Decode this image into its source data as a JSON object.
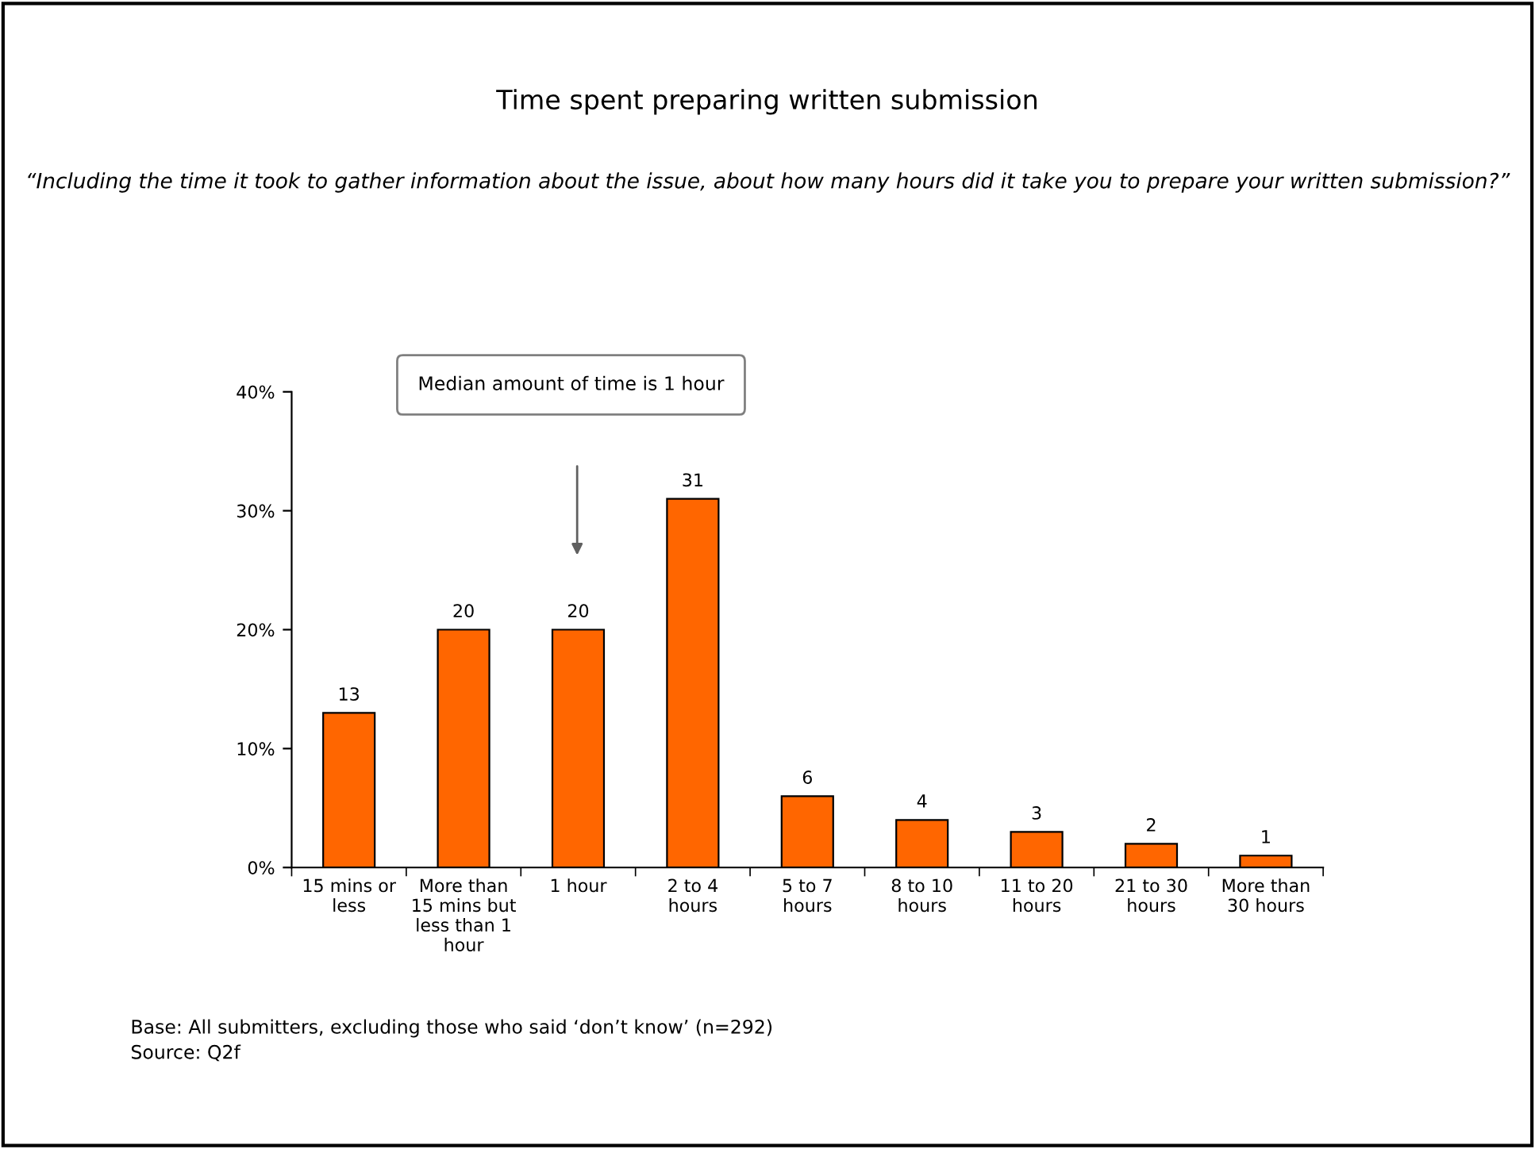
{
  "chart_data": {
    "type": "bar",
    "title": "Time spent preparing written submission",
    "subtitle": "“Including the time it took to gather information about the issue, about how many hours did it take you to prepare your written submission?”",
    "categories": [
      "15 mins or\nless",
      "More than\n15 mins but\nless than 1\nhour",
      "1 hour",
      "2 to 4\nhours",
      "5 to 7\nhours",
      "8 to 10\nhours",
      "11 to 20\nhours",
      "21 to 30\nhours",
      "More than\n30 hours"
    ],
    "values": [
      13,
      20,
      20,
      31,
      6,
      4,
      3,
      2,
      1
    ],
    "color": "#ff6600",
    "ylim": [
      0,
      40
    ],
    "yticks": [
      {
        "value": 0,
        "label": "0%"
      },
      {
        "value": 10,
        "label": "10%"
      },
      {
        "value": 20,
        "label": "20%"
      },
      {
        "value": 30,
        "label": "30%"
      },
      {
        "value": 40,
        "label": "40%"
      }
    ],
    "data_labels": true,
    "grid": false,
    "legend": false,
    "annotations": [
      "Median amount of time is 1 hour",
      "Base: All submitters, excluding those who said ‘don’t know’ (n=292)",
      "Source: Q2f"
    ]
  }
}
